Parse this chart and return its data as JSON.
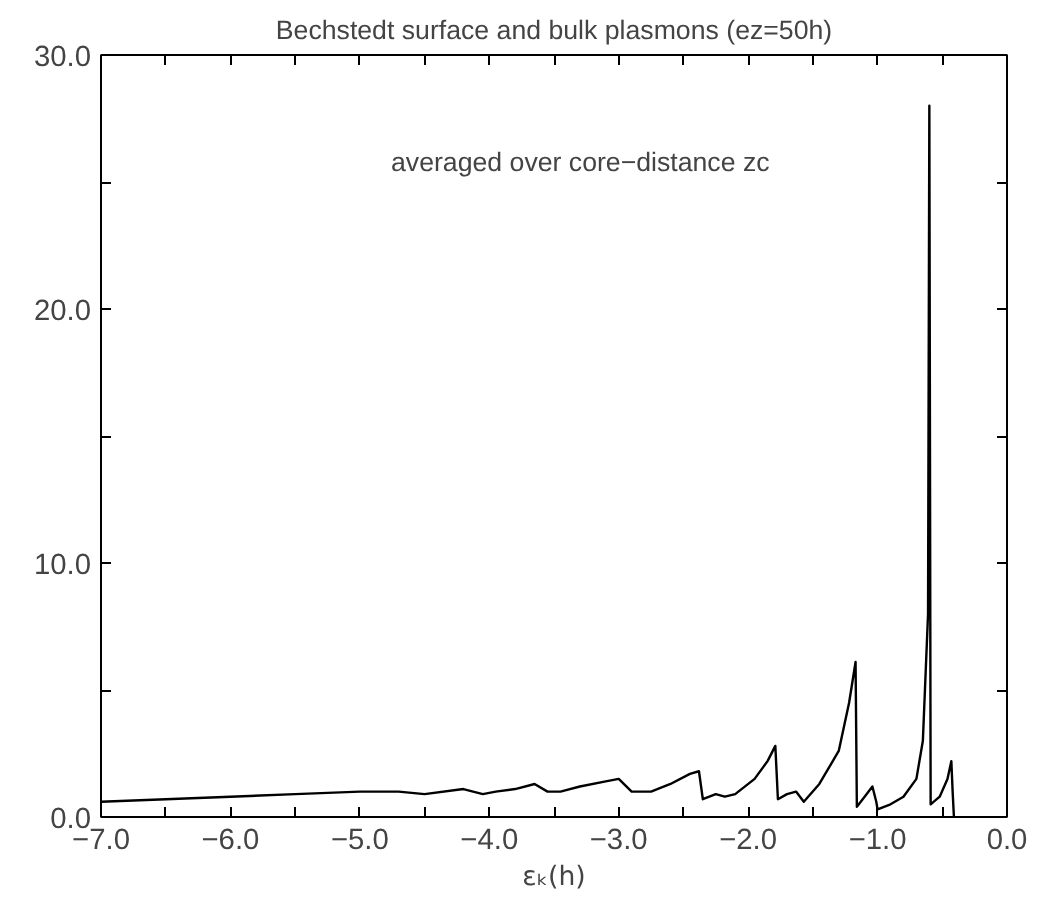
{
  "chart_data": {
    "type": "line",
    "title": "Bechstedt surface and bulk plasmons (ez=50h)",
    "xlabel": "εₖ(h)",
    "annotations": [
      "averaged over core−distance zc"
    ],
    "series": [
      {
        "color": "#000000",
        "x": [
          -7.0,
          -6.5,
          -6.0,
          -5.5,
          -5.0,
          -4.7,
          -4.5,
          -4.2,
          -4.05,
          -3.95,
          -3.8,
          -3.65,
          -3.55,
          -3.45,
          -3.3,
          -3.1,
          -3.0,
          -2.9,
          -2.75,
          -2.6,
          -2.45,
          -2.38,
          -2.35,
          -2.25,
          -2.18,
          -2.1,
          -1.95,
          -1.85,
          -1.79,
          -1.77,
          -1.7,
          -1.63,
          -1.57,
          -1.45,
          -1.3,
          -1.22,
          -1.17,
          -1.16,
          -1.1,
          -1.04,
          -1.01,
          -1.0,
          -0.9,
          -0.8,
          -0.7,
          -0.65,
          -0.61,
          -0.6,
          -0.59,
          -0.52,
          -0.46,
          -0.43,
          -0.42,
          -0.41
        ],
        "values": [
          0.6,
          0.7,
          0.8,
          0.9,
          1.0,
          1.0,
          0.9,
          1.1,
          0.9,
          1.0,
          1.1,
          1.3,
          1.0,
          1.0,
          1.2,
          1.4,
          1.5,
          1.0,
          1.0,
          1.3,
          1.7,
          1.8,
          0.7,
          0.9,
          0.8,
          0.9,
          1.5,
          2.2,
          2.8,
          0.7,
          0.9,
          1.0,
          0.6,
          1.3,
          2.6,
          4.5,
          6.1,
          0.4,
          0.8,
          1.2,
          0.6,
          0.3,
          0.5,
          0.8,
          1.5,
          3.0,
          8.0,
          28.0,
          0.5,
          0.8,
          1.5,
          2.2,
          1.0,
          0.0
        ]
      }
    ],
    "xlim": [
      -7.0,
      0.0
    ],
    "ylim": [
      0.0,
      30.0
    ],
    "xticks": [
      {
        "value": -7.0,
        "label": "−7.0"
      },
      {
        "value": -6.5,
        "label": null
      },
      {
        "value": -6.0,
        "label": "−6.0"
      },
      {
        "value": -5.5,
        "label": null
      },
      {
        "value": -5.0,
        "label": "−5.0"
      },
      {
        "value": -4.5,
        "label": null
      },
      {
        "value": -4.0,
        "label": "−4.0"
      },
      {
        "value": -3.5,
        "label": null
      },
      {
        "value": -3.0,
        "label": "−3.0"
      },
      {
        "value": -2.5,
        "label": null
      },
      {
        "value": -2.0,
        "label": "−2.0"
      },
      {
        "value": -1.5,
        "label": null
      },
      {
        "value": -1.0,
        "label": "−1.0"
      },
      {
        "value": -0.5,
        "label": null
      },
      {
        "value": 0.0,
        "label": "0.0"
      }
    ],
    "yticks": [
      {
        "value": 0.0,
        "label": "0.0"
      },
      {
        "value": 5.0,
        "label": null
      },
      {
        "value": 10.0,
        "label": "10.0"
      },
      {
        "value": 15.0,
        "label": null
      },
      {
        "value": 20.0,
        "label": "20.0"
      },
      {
        "value": 25.0,
        "label": null
      },
      {
        "value": 30.0,
        "label": "30.0"
      }
    ],
    "grid": false,
    "marker": "none",
    "line_style": "solid"
  }
}
